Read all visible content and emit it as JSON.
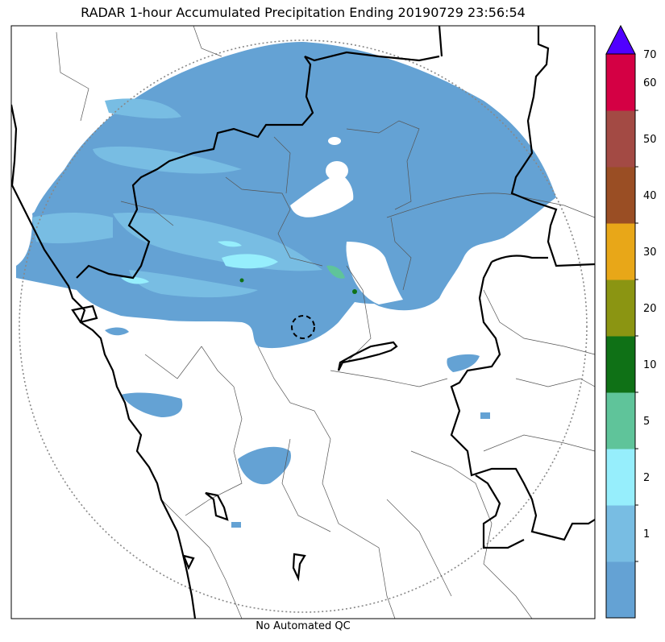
{
  "title": "RADAR 1-hour Accumulated Precipitation Ending 20190729 23:56:54",
  "caption": "No Automated QC",
  "colorbar": {
    "bins": [
      {
        "label": "",
        "color": "#64a2d4"
      },
      {
        "label": "1",
        "color": "#78bde3"
      },
      {
        "label": "2",
        "color": "#96eefc"
      },
      {
        "label": "5",
        "color": "#5fc49a"
      },
      {
        "label": "10",
        "color": "#0f7116"
      },
      {
        "label": "20",
        "color": "#8b9512"
      },
      {
        "label": "30",
        "color": "#e8a718"
      },
      {
        "label": "40",
        "color": "#9a4e24"
      },
      {
        "label": "50",
        "color": "#a34a44"
      },
      {
        "label": "60",
        "color": "#d40044"
      }
    ],
    "top_label": "70",
    "extend_color": "#5000ff"
  }
}
